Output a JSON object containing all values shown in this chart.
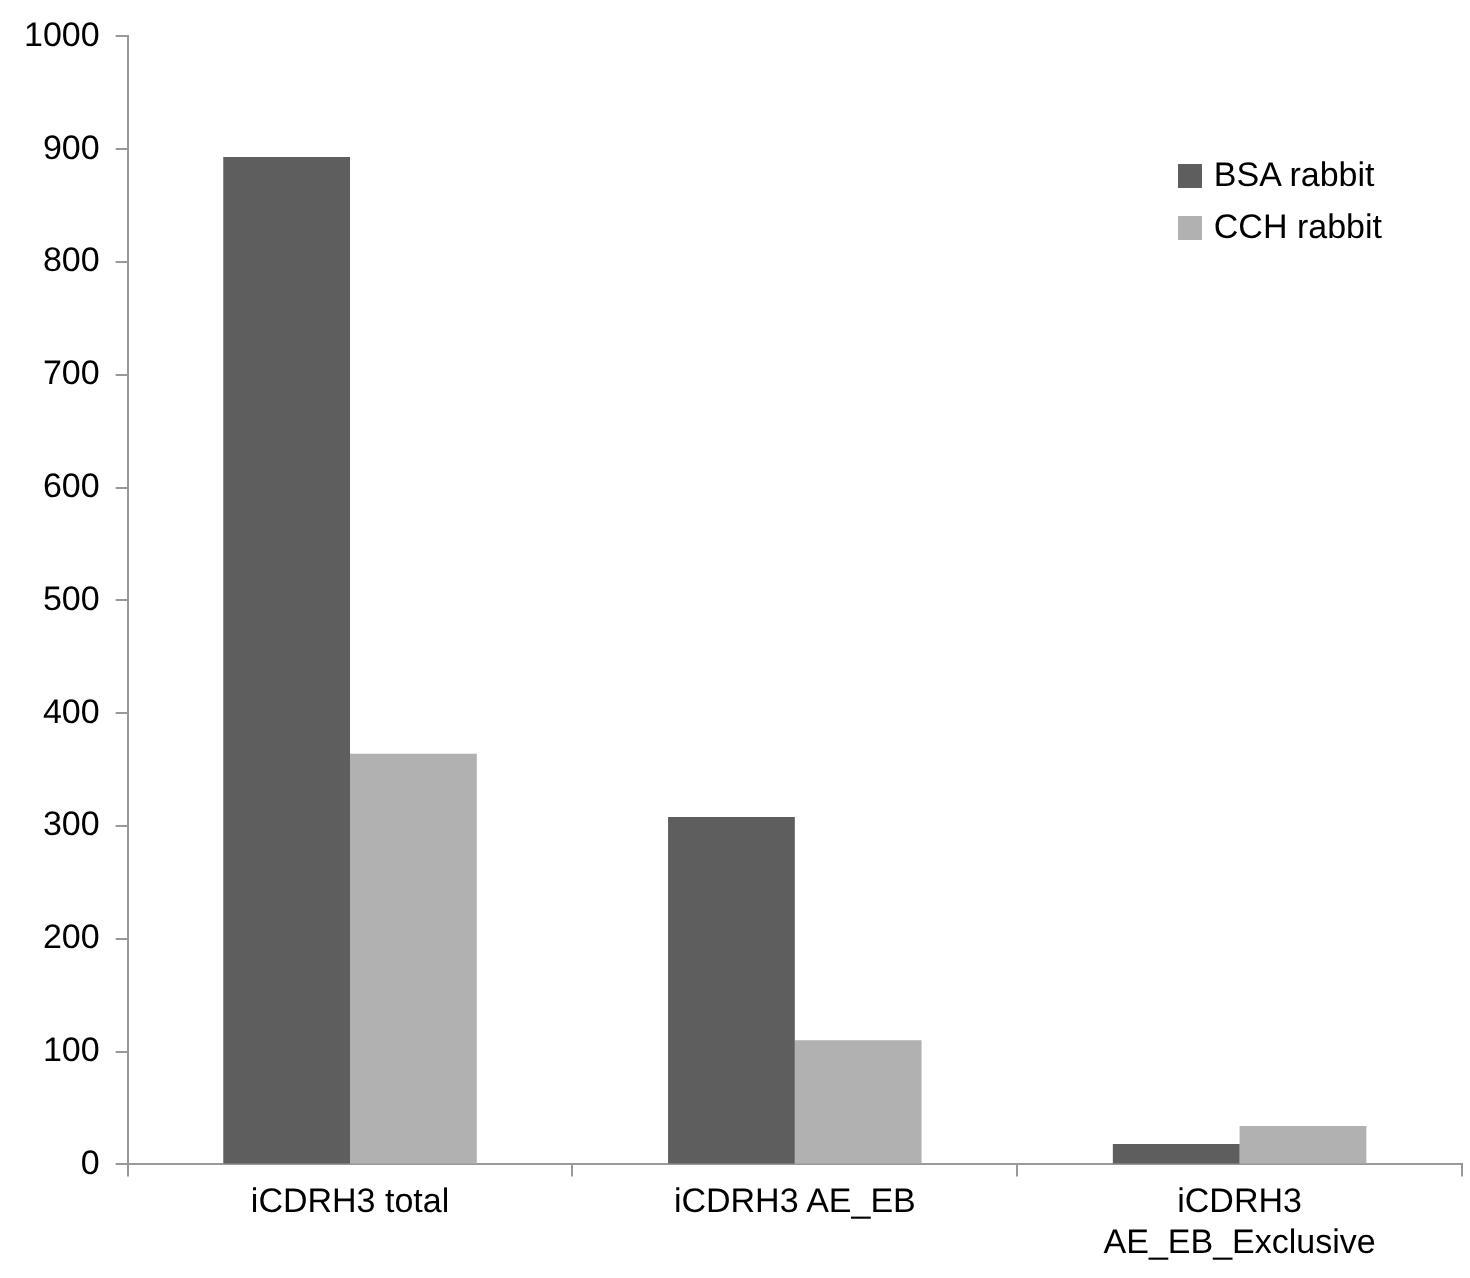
{
  "chart_data": {
    "type": "bar",
    "categories": [
      "iCDRH3 total",
      "iCDRH3 AE_EB",
      "iCDRH3\nAE_EB_Exclusive"
    ],
    "series": [
      {
        "name": "BSA rabbit",
        "color": "#5e5e5e",
        "values": [
          893,
          308,
          18
        ]
      },
      {
        "name": "CCH rabbit",
        "color": "#b1b1b1",
        "values": [
          364,
          110,
          34
        ]
      }
    ],
    "ylim": [
      0,
      1000
    ],
    "yticks": [
      0,
      100,
      200,
      300,
      400,
      500,
      600,
      700,
      800,
      900,
      1000
    ],
    "grid": false,
    "legend": "top right"
  }
}
